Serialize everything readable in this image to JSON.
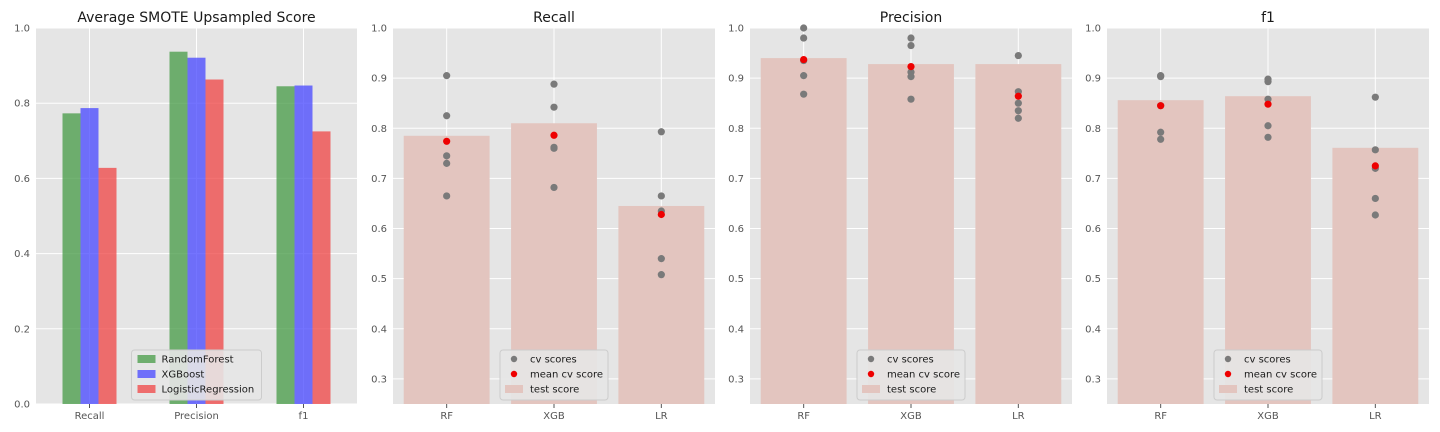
{
  "chart_data": [
    {
      "type": "bar",
      "title": "Average SMOTE Upsampled Score",
      "categories": [
        "Recall",
        "Precision",
        "f1"
      ],
      "series": [
        {
          "name": "RandomForest",
          "values": [
            0.773,
            0.937,
            0.845
          ],
          "color": "#4c9d4c"
        },
        {
          "name": "XGBoost",
          "values": [
            0.787,
            0.921,
            0.847
          ],
          "color": "#4d4dff"
        },
        {
          "name": "LogisticRegression",
          "values": [
            0.628,
            0.863,
            0.725
          ],
          "color": "#f04a4a"
        }
      ],
      "ylim": [
        0,
        1.0
      ],
      "yticks": [
        "0.0",
        "0.2",
        "0.4",
        "0.6",
        "0.8",
        "1.0"
      ],
      "grid": true,
      "legend": "bottom-center"
    },
    {
      "type": "bar",
      "title": "Recall",
      "categories": [
        "RF",
        "XGB",
        "LR"
      ],
      "test_score": [
        0.785,
        0.81,
        0.645
      ],
      "cv_scores": [
        [
          0.905,
          0.825,
          0.745,
          0.73,
          0.665
        ],
        [
          0.888,
          0.842,
          0.762,
          0.76,
          0.682
        ],
        [
          0.793,
          0.665,
          0.635,
          0.54,
          0.508
        ]
      ],
      "mean_cv_score": [
        0.774,
        0.786,
        0.628
      ],
      "ylim": [
        0.25,
        1.0
      ],
      "yticks": [
        "0.3",
        "0.4",
        "0.5",
        "0.6",
        "0.7",
        "0.8",
        "0.9",
        "1.0"
      ],
      "grid": true,
      "legend": "bottom-center"
    },
    {
      "type": "bar",
      "title": "Precision",
      "categories": [
        "RF",
        "XGB",
        "LR"
      ],
      "test_score": [
        0.94,
        0.928,
        0.928
      ],
      "cv_scores": [
        [
          1.0,
          0.98,
          0.935,
          0.905,
          0.868
        ],
        [
          0.98,
          0.965,
          0.912,
          0.903,
          0.858
        ],
        [
          0.945,
          0.873,
          0.85,
          0.835,
          0.82
        ]
      ],
      "mean_cv_score": [
        0.937,
        0.923,
        0.864
      ],
      "ylim": [
        0.25,
        1.0
      ],
      "yticks": [
        "0.3",
        "0.4",
        "0.5",
        "0.6",
        "0.7",
        "0.8",
        "0.9",
        "1.0"
      ],
      "grid": true,
      "legend": "bottom-center"
    },
    {
      "type": "bar",
      "title": "f1",
      "categories": [
        "RF",
        "XGB",
        "LR"
      ],
      "test_score": [
        0.856,
        0.864,
        0.761
      ],
      "cv_scores": [
        [
          0.905,
          0.903,
          0.845,
          0.792,
          0.778
        ],
        [
          0.898,
          0.893,
          0.858,
          0.805,
          0.782
        ],
        [
          0.862,
          0.757,
          0.72,
          0.66,
          0.627
        ]
      ],
      "mean_cv_score": [
        0.845,
        0.848,
        0.725
      ],
      "ylim": [
        0.25,
        1.0
      ],
      "yticks": [
        "0.3",
        "0.4",
        "0.5",
        "0.6",
        "0.7",
        "0.8",
        "0.9",
        "1.0"
      ],
      "grid": true,
      "legend": "bottom-center"
    }
  ],
  "legend_labels": {
    "cv": "cv scores",
    "mean": "mean cv score",
    "test": "test score"
  },
  "colors": {
    "panel_bg": "#e5e5e5",
    "grid": "#ffffff",
    "test_bar": "#e3c5bf",
    "cv_point": "#7a7a7a",
    "mean_point": "#ee0000"
  }
}
